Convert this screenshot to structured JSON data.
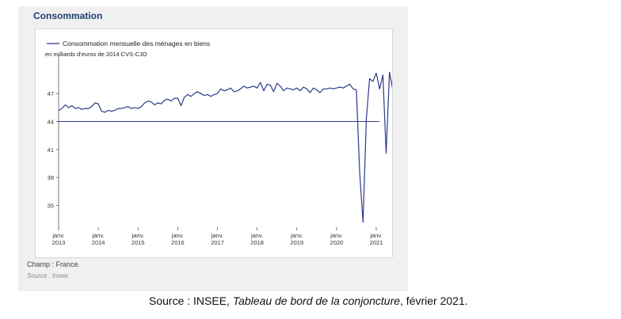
{
  "panel": {
    "title": "Consommation",
    "note": "Champ : France.",
    "source": "Source : Insee."
  },
  "caption": {
    "prefix": "Source : INSEE, ",
    "italic": "Tableau de bord de la conjoncture",
    "suffix": ", février 2021."
  },
  "colors": {
    "series": "#2e3a8c",
    "title": "#1b3f6f",
    "panel": "#f0f0f0"
  },
  "chart_data": {
    "type": "line",
    "title": "",
    "legend": "Consommation mensuelle des ménages en biens",
    "unit": "en milliards d'euros de 2014 CVS-CJO",
    "legend_position": "top-left",
    "grid": false,
    "ylim": [
      32.5,
      50.5
    ],
    "yticks": [
      35,
      38,
      41,
      44,
      47
    ],
    "reference_line": 44,
    "x_start": "2013-01",
    "x_ticks": [
      {
        "date": "2013-01",
        "month": "janv.",
        "year": "2013"
      },
      {
        "date": "2014-01",
        "month": "janv.",
        "year": "2014"
      },
      {
        "date": "2015-01",
        "month": "janv.",
        "year": "2015"
      },
      {
        "date": "2016-01",
        "month": "janv.",
        "year": "2016"
      },
      {
        "date": "2017-01",
        "month": "janv.",
        "year": "2017"
      },
      {
        "date": "2018-01",
        "month": "janv.",
        "year": "2018"
      },
      {
        "date": "2019-01",
        "month": "janv.",
        "year": "2019"
      },
      {
        "date": "2020-01",
        "month": "janv.",
        "year": "2020"
      },
      {
        "date": "2021-01",
        "month": "janv.",
        "year": "2021"
      }
    ],
    "series": [
      {
        "name": "Consommation mensuelle des ménages en biens",
        "values": [
          45.2,
          45.4,
          45.8,
          45.5,
          45.7,
          45.4,
          45.5,
          45.3,
          45.4,
          45.4,
          45.6,
          46.0,
          45.9,
          45.1,
          45.0,
          45.2,
          45.1,
          45.2,
          45.4,
          45.4,
          45.5,
          45.6,
          45.4,
          45.5,
          45.4,
          45.6,
          46.0,
          46.2,
          46.1,
          45.8,
          46.0,
          45.9,
          46.3,
          46.4,
          46.2,
          46.5,
          46.5,
          45.7,
          46.6,
          46.9,
          46.7,
          47.0,
          47.2,
          47.0,
          46.8,
          46.9,
          46.7,
          46.9,
          47.0,
          47.5,
          47.3,
          47.4,
          47.6,
          47.2,
          47.3,
          47.5,
          47.8,
          47.6,
          47.7,
          47.8,
          47.6,
          48.2,
          47.3,
          48.0,
          47.9,
          47.2,
          48.1,
          47.8,
          47.3,
          47.6,
          47.5,
          47.4,
          47.6,
          47.3,
          47.7,
          47.5,
          47.1,
          47.6,
          47.4,
          47.1,
          47.5,
          47.5,
          47.6,
          47.5,
          47.6,
          47.7,
          47.6,
          47.8,
          48.0,
          47.5,
          47.4,
          38.5,
          33.2,
          44.3,
          48.6,
          48.3,
          49.2,
          47.5,
          49.0,
          40.6,
          49.3,
          47.4
        ]
      }
    ]
  }
}
